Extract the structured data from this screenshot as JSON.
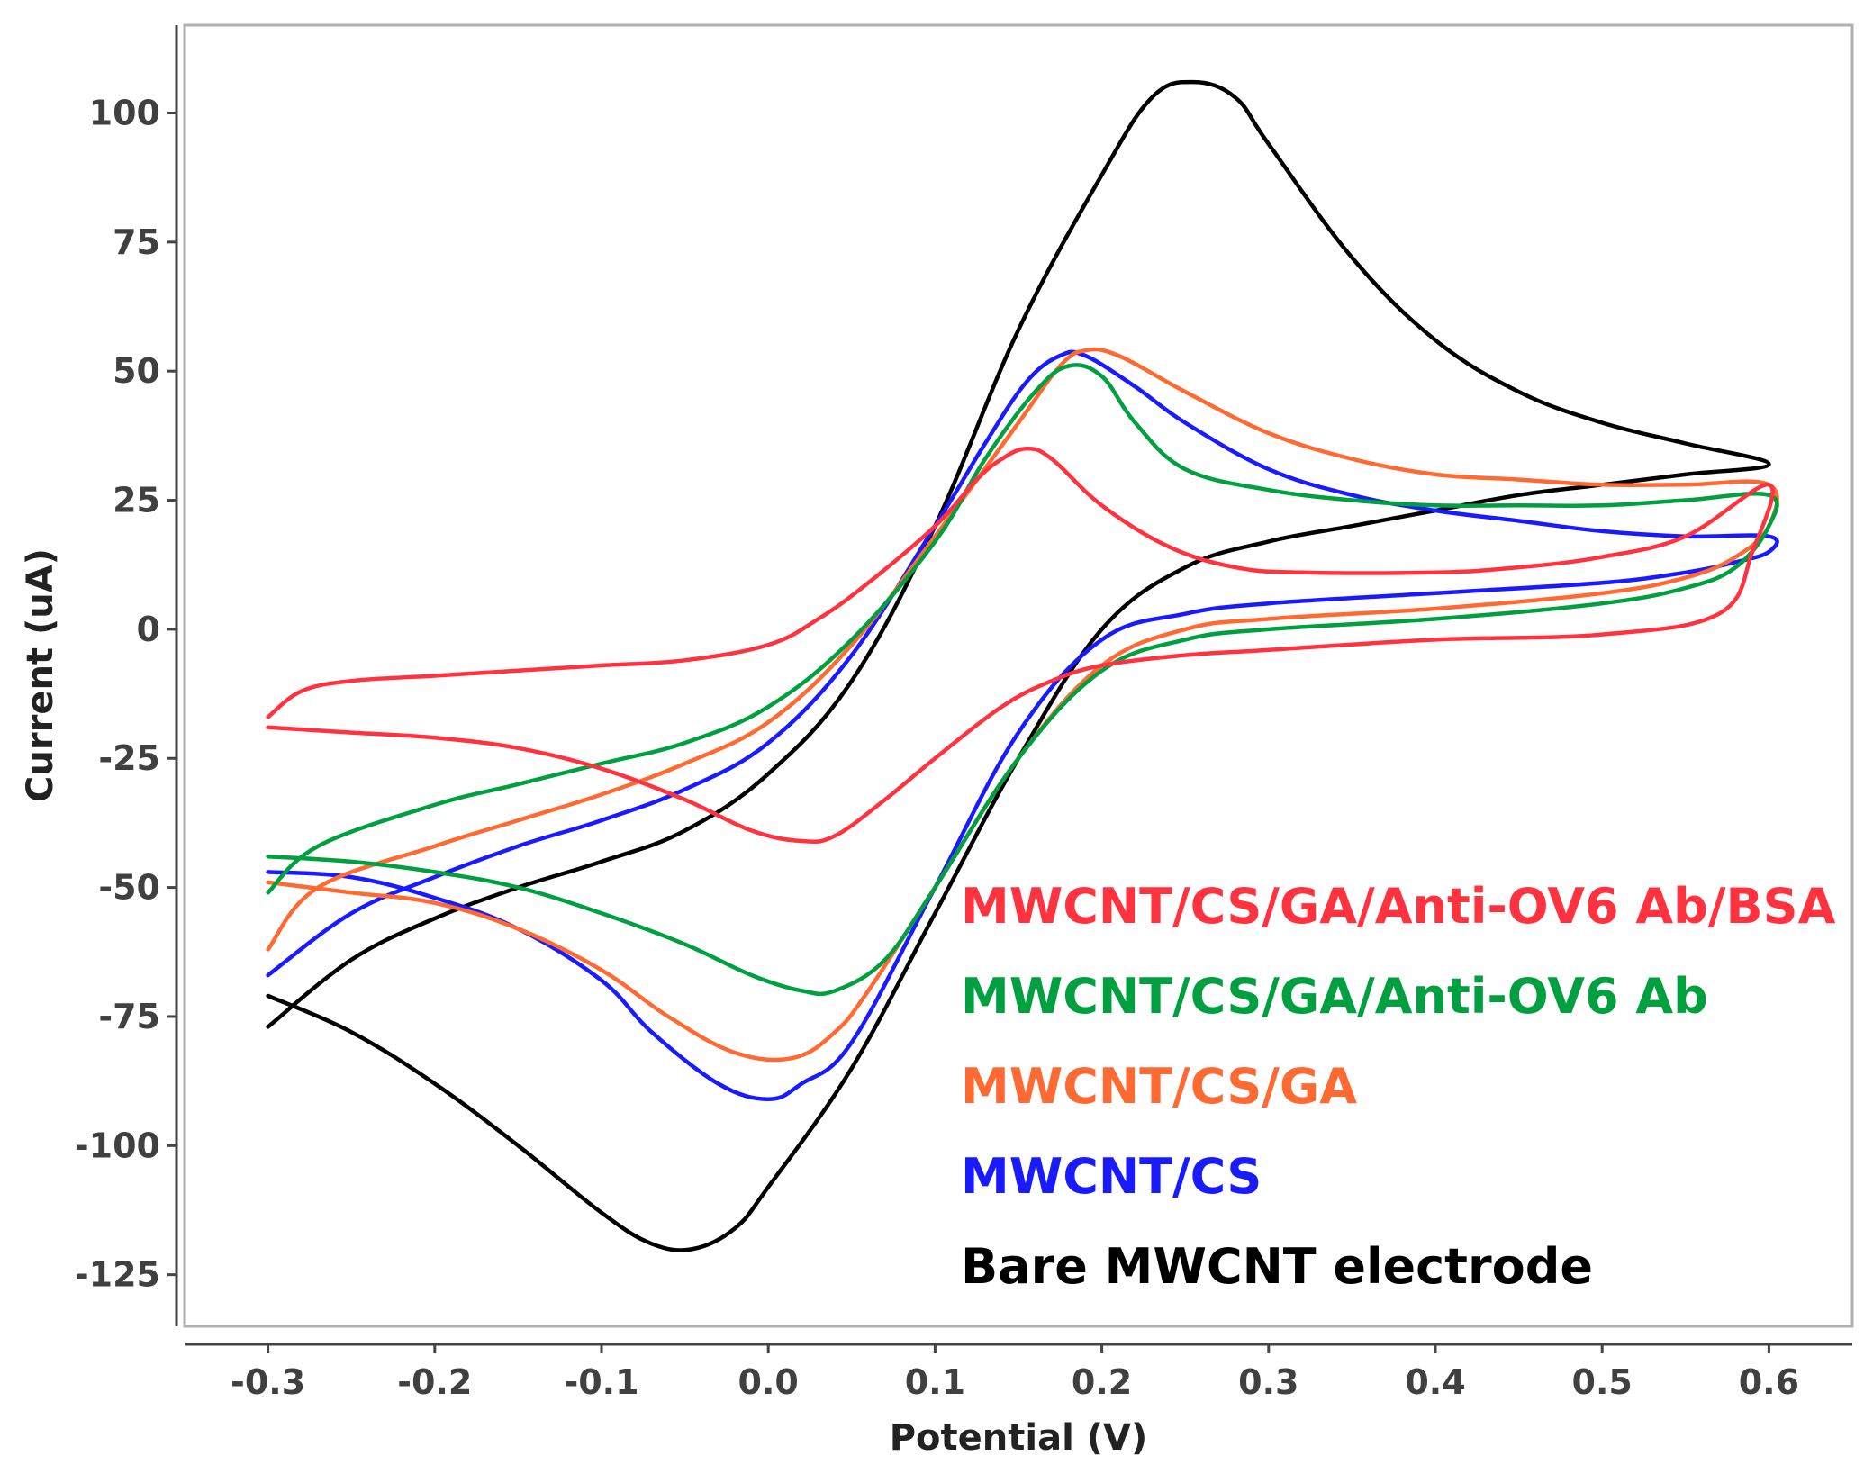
{
  "chart_data": {
    "type": "line",
    "title": "",
    "xlabel": "Potential (V)",
    "ylabel": "Current (uA)",
    "xlim": [
      -0.35,
      0.65
    ],
    "ylim": [
      -135,
      117
    ],
    "grid": false,
    "legend_placement": "bottom-right",
    "xticks": [
      -0.3,
      -0.2,
      -0.1,
      0.0,
      0.1,
      0.2,
      0.3,
      0.4,
      0.5,
      0.6
    ],
    "xtick_labels": [
      "-0.3",
      "-0.2",
      "-0.1",
      "0.0",
      "0.1",
      "0.2",
      "0.3",
      "0.4",
      "0.5",
      "0.6"
    ],
    "yticks": [
      100,
      75,
      50,
      25,
      0,
      -25,
      -50,
      -75,
      -100,
      -125
    ],
    "ytick_labels": [
      "100",
      "75",
      "50",
      "25",
      "0",
      "-25",
      "-50",
      "-75",
      "-100",
      "-125"
    ],
    "series": [
      {
        "name": "Bare MWCNT electrode",
        "color": "#000000",
        "points": [
          [
            -0.3,
            -77
          ],
          [
            -0.25,
            -64
          ],
          [
            -0.2,
            -56
          ],
          [
            -0.15,
            -50
          ],
          [
            -0.1,
            -45
          ],
          [
            -0.05,
            -39
          ],
          [
            0.0,
            -28
          ],
          [
            0.05,
            -10
          ],
          [
            0.1,
            20
          ],
          [
            0.15,
            58
          ],
          [
            0.2,
            88
          ],
          [
            0.23,
            103
          ],
          [
            0.255,
            106
          ],
          [
            0.28,
            103
          ],
          [
            0.3,
            94
          ],
          [
            0.35,
            72
          ],
          [
            0.4,
            56
          ],
          [
            0.45,
            46
          ],
          [
            0.5,
            40
          ],
          [
            0.55,
            36
          ],
          [
            0.6,
            32
          ],
          [
            0.55,
            30
          ],
          [
            0.5,
            28
          ],
          [
            0.45,
            26
          ],
          [
            0.4,
            23
          ],
          [
            0.35,
            20
          ],
          [
            0.3,
            17
          ],
          [
            0.25,
            12
          ],
          [
            0.2,
            0
          ],
          [
            0.15,
            -25
          ],
          [
            0.1,
            -55
          ],
          [
            0.05,
            -85
          ],
          [
            0.0,
            -108
          ],
          [
            -0.02,
            -116
          ],
          [
            -0.045,
            -120
          ],
          [
            -0.07,
            -119
          ],
          [
            -0.1,
            -113
          ],
          [
            -0.15,
            -100
          ],
          [
            -0.2,
            -88
          ],
          [
            -0.25,
            -78
          ],
          [
            -0.3,
            -71
          ]
        ]
      },
      {
        "name": "MWCNT/CS",
        "color": "#1a1aff",
        "points": [
          [
            -0.3,
            -67
          ],
          [
            -0.25,
            -55
          ],
          [
            -0.2,
            -48
          ],
          [
            -0.15,
            -42
          ],
          [
            -0.1,
            -37
          ],
          [
            -0.05,
            -31
          ],
          [
            0.0,
            -22
          ],
          [
            0.05,
            -5
          ],
          [
            0.1,
            20
          ],
          [
            0.13,
            36
          ],
          [
            0.155,
            48
          ],
          [
            0.175,
            53
          ],
          [
            0.19,
            53
          ],
          [
            0.22,
            47
          ],
          [
            0.25,
            40
          ],
          [
            0.3,
            31
          ],
          [
            0.35,
            26
          ],
          [
            0.4,
            23
          ],
          [
            0.45,
            21
          ],
          [
            0.5,
            19
          ],
          [
            0.55,
            18
          ],
          [
            0.6,
            18
          ],
          [
            0.6,
            15
          ],
          [
            0.58,
            13
          ],
          [
            0.55,
            11
          ],
          [
            0.5,
            9
          ],
          [
            0.4,
            7
          ],
          [
            0.3,
            5
          ],
          [
            0.25,
            3
          ],
          [
            0.2,
            -2
          ],
          [
            0.15,
            -20
          ],
          [
            0.1,
            -50
          ],
          [
            0.05,
            -80
          ],
          [
            0.02,
            -88
          ],
          [
            0.0,
            -91
          ],
          [
            -0.03,
            -88
          ],
          [
            -0.07,
            -78
          ],
          [
            -0.1,
            -68
          ],
          [
            -0.15,
            -58
          ],
          [
            -0.2,
            -52
          ],
          [
            -0.25,
            -48
          ],
          [
            -0.3,
            -47
          ]
        ]
      },
      {
        "name": "MWCNT/CS/GA",
        "color": "#ff6a33",
        "points": [
          [
            -0.3,
            -62
          ],
          [
            -0.27,
            -50
          ],
          [
            -0.2,
            -42
          ],
          [
            -0.15,
            -37
          ],
          [
            -0.1,
            -32
          ],
          [
            -0.05,
            -26
          ],
          [
            0.0,
            -18
          ],
          [
            0.05,
            -3
          ],
          [
            0.1,
            18
          ],
          [
            0.15,
            40
          ],
          [
            0.175,
            51
          ],
          [
            0.19,
            54
          ],
          [
            0.21,
            53
          ],
          [
            0.25,
            46
          ],
          [
            0.3,
            38
          ],
          [
            0.35,
            33
          ],
          [
            0.4,
            30
          ],
          [
            0.45,
            29
          ],
          [
            0.5,
            28
          ],
          [
            0.55,
            28
          ],
          [
            0.6,
            28
          ],
          [
            0.6,
            20
          ],
          [
            0.58,
            14
          ],
          [
            0.55,
            10
          ],
          [
            0.5,
            7
          ],
          [
            0.4,
            4
          ],
          [
            0.3,
            2
          ],
          [
            0.25,
            0
          ],
          [
            0.2,
            -7
          ],
          [
            0.15,
            -25
          ],
          [
            0.1,
            -50
          ],
          [
            0.06,
            -70
          ],
          [
            0.04,
            -78
          ],
          [
            0.015,
            -83
          ],
          [
            -0.02,
            -82
          ],
          [
            -0.06,
            -75
          ],
          [
            -0.1,
            -66
          ],
          [
            -0.15,
            -58
          ],
          [
            -0.2,
            -53
          ],
          [
            -0.25,
            -51
          ],
          [
            -0.3,
            -49
          ]
        ]
      },
      {
        "name": "MWCNT/CS/GA/Anti-OV6 Ab",
        "color": "#00a040",
        "points": [
          [
            -0.3,
            -51
          ],
          [
            -0.27,
            -42
          ],
          [
            -0.2,
            -34
          ],
          [
            -0.15,
            -30
          ],
          [
            -0.1,
            -26
          ],
          [
            -0.05,
            -22
          ],
          [
            0.0,
            -15
          ],
          [
            0.05,
            -2
          ],
          [
            0.1,
            17
          ],
          [
            0.13,
            33
          ],
          [
            0.16,
            46
          ],
          [
            0.18,
            51
          ],
          [
            0.2,
            49
          ],
          [
            0.22,
            40
          ],
          [
            0.25,
            31
          ],
          [
            0.3,
            27
          ],
          [
            0.35,
            25
          ],
          [
            0.4,
            24
          ],
          [
            0.45,
            24
          ],
          [
            0.5,
            24
          ],
          [
            0.55,
            25
          ],
          [
            0.6,
            26
          ],
          [
            0.6,
            20
          ],
          [
            0.58,
            12
          ],
          [
            0.55,
            8
          ],
          [
            0.5,
            5
          ],
          [
            0.4,
            2
          ],
          [
            0.3,
            0
          ],
          [
            0.25,
            -2
          ],
          [
            0.2,
            -8
          ],
          [
            0.15,
            -25
          ],
          [
            0.1,
            -50
          ],
          [
            0.07,
            -64
          ],
          [
            0.04,
            -70
          ],
          [
            0.02,
            -70
          ],
          [
            -0.01,
            -67
          ],
          [
            -0.05,
            -61
          ],
          [
            -0.1,
            -55
          ],
          [
            -0.15,
            -50
          ],
          [
            -0.2,
            -47
          ],
          [
            -0.25,
            -45
          ],
          [
            -0.3,
            -44
          ]
        ]
      },
      {
        "name": "MWCNT/CS/GA/Anti-OV6 Ab/BSA",
        "color": "#ff3340",
        "points": [
          [
            -0.3,
            -17
          ],
          [
            -0.28,
            -12
          ],
          [
            -0.25,
            -10
          ],
          [
            -0.2,
            -9
          ],
          [
            -0.15,
            -8
          ],
          [
            -0.1,
            -7
          ],
          [
            -0.05,
            -6
          ],
          [
            0.0,
            -3
          ],
          [
            0.03,
            2
          ],
          [
            0.06,
            9
          ],
          [
            0.1,
            20
          ],
          [
            0.125,
            29
          ],
          [
            0.14,
            33
          ],
          [
            0.155,
            35
          ],
          [
            0.17,
            33
          ],
          [
            0.2,
            24
          ],
          [
            0.24,
            16
          ],
          [
            0.28,
            12
          ],
          [
            0.32,
            11
          ],
          [
            0.4,
            11
          ],
          [
            0.45,
            12
          ],
          [
            0.5,
            14
          ],
          [
            0.55,
            18
          ],
          [
            0.6,
            28
          ],
          [
            0.59,
            15
          ],
          [
            0.57,
            3
          ],
          [
            0.5,
            -1
          ],
          [
            0.4,
            -2
          ],
          [
            0.3,
            -4
          ],
          [
            0.25,
            -5
          ],
          [
            0.2,
            -7
          ],
          [
            0.17,
            -10
          ],
          [
            0.14,
            -15
          ],
          [
            0.1,
            -25
          ],
          [
            0.07,
            -33
          ],
          [
            0.04,
            -40
          ],
          [
            0.02,
            -41
          ],
          [
            -0.01,
            -39
          ],
          [
            -0.05,
            -33
          ],
          [
            -0.1,
            -27
          ],
          [
            -0.15,
            -23
          ],
          [
            -0.2,
            -21
          ],
          [
            -0.25,
            -20
          ],
          [
            -0.3,
            -19
          ]
        ]
      }
    ],
    "legend_order": [
      "MWCNT/CS/GA/Anti-OV6 Ab/BSA",
      "MWCNT/CS/GA/Anti-OV6 Ab",
      "MWCNT/CS/GA",
      "MWCNT/CS",
      "Bare MWCNT electrode"
    ]
  }
}
